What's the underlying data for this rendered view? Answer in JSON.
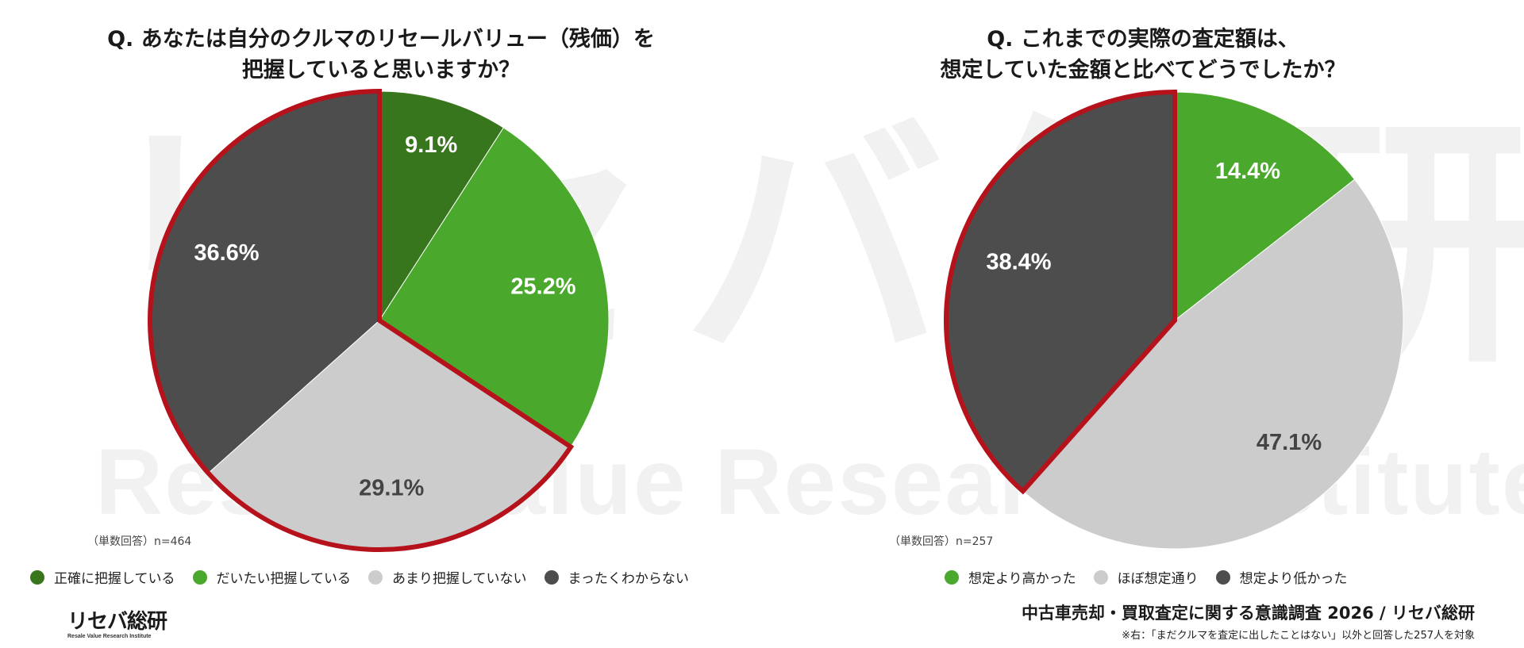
{
  "watermark": {
    "big": "リセバ総研",
    "sub": "Resale Value Research Institute"
  },
  "logo": {
    "main": "リセバ総研",
    "sub": "Resale Value Research Institute"
  },
  "footer": {
    "title": "中古車売却・買取査定に関する意識調査 2026 / リセバ総研",
    "note": "※右：「まだクルマを査定に出したことはない」以外と回答した257人を対象"
  },
  "highlight_color": "#b5121b",
  "chart_data": [
    {
      "type": "pie",
      "title_lines": [
        "Q. あなたは自分のクルマのリセールバリュー（残価）を",
        "把握していると思いますか？"
      ],
      "note": "（単数回答）n=464",
      "categories": [
        "正確に把握している",
        "だいたい把握している",
        "あまり把握していない",
        "まったくわからない"
      ],
      "values": [
        9.1,
        25.2,
        29.1,
        36.6
      ],
      "labels": [
        "9.1%",
        "25.2%",
        "29.1%",
        "36.6%"
      ],
      "colors": [
        "#38761d",
        "#4aa92c",
        "#cccccc",
        "#4d4d4d"
      ],
      "label_colors": [
        "#ffffff",
        "#ffffff",
        "#444444",
        "#ffffff"
      ],
      "highlighted": [
        2,
        3
      ],
      "legend_position": "bottom"
    },
    {
      "type": "pie",
      "title_lines": [
        "Q. これまでの実際の査定額は、",
        "想定していた金額と比べてどうでしたか？"
      ],
      "note": "（単数回答）n=257",
      "categories": [
        "想定より高かった",
        "ほぼ想定通り",
        "想定より低かった"
      ],
      "values": [
        14.4,
        47.1,
        38.4
      ],
      "labels": [
        "14.4%",
        "47.1%",
        "38.4%"
      ],
      "colors": [
        "#4aa92c",
        "#cccccc",
        "#4d4d4d"
      ],
      "label_colors": [
        "#ffffff",
        "#444444",
        "#ffffff"
      ],
      "highlighted": [
        2
      ],
      "legend_position": "bottom"
    }
  ]
}
